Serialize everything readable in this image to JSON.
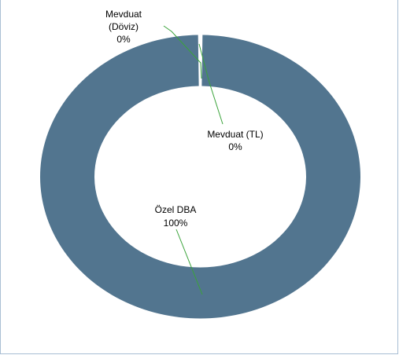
{
  "chart_data": {
    "type": "pie",
    "variant": "doughnut",
    "slices": [
      {
        "label": "Mevduat (Döviz)",
        "label_lines": [
          "Mevduat",
          "(Döviz)"
        ],
        "value_label": "0%",
        "value": 0
      },
      {
        "label": "Mevduat (TL)",
        "label_lines": [
          "Mevduat (TL)"
        ],
        "value_label": "0%",
        "value": 0
      },
      {
        "label": "Özel DBA",
        "label_lines": [
          "Özel DBA"
        ],
        "value_label": "100%",
        "value": 100
      }
    ],
    "legend": "none",
    "data_labels": "callout",
    "colors": {
      "ring": "#52758f",
      "leader": "#3aa33a",
      "frame": "#a9bfd4"
    }
  }
}
